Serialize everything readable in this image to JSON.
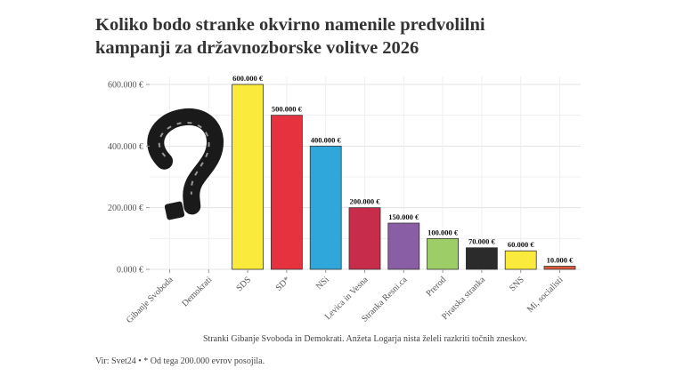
{
  "title_line1": "Koliko bodo stranke okvirno namenile predvolilni",
  "title_line2": "kampanji za državnozborske volitve 2026",
  "note": "Stranki Gibanje Svoboda in Demokrati. Anžeta Logarja nista želeli razkriti točnih zneskov.",
  "source": "Vir: Svet24 • * Od tega 200.000 evrov posojila.",
  "decoration": {
    "icon": "question-mark-icon"
  },
  "chart_data": {
    "type": "bar",
    "categories": [
      "Gibanje Svoboda",
      "Demokrati",
      "SDS",
      "SD*",
      "NSi",
      "Levica in Vesna",
      "Stranka Resni.ca",
      "Prerod",
      "Piratska stranka",
      "SNS",
      "Mi, socialisti"
    ],
    "values": [
      null,
      null,
      600000,
      500000,
      400000,
      200000,
      150000,
      100000,
      70000,
      60000,
      10000
    ],
    "data_labels": [
      "",
      "",
      "600.000 €",
      "500.000 €",
      "400.000 €",
      "200.000 €",
      "150.000 €",
      "100.000 €",
      "70.000 €",
      "60.000 €",
      "10.000 €"
    ],
    "colors": [
      "#cccccc",
      "#cccccc",
      "#f9ea3b",
      "#e6323f",
      "#30a7db",
      "#c72c4b",
      "#8a5ea4",
      "#9dcd66",
      "#2b2b2b",
      "#f9ea3b",
      "#e0583a"
    ],
    "yticks": [
      0,
      200000,
      400000,
      600000
    ],
    "ytick_labels": [
      "0.000 €",
      "200.000 €",
      "400.000 €",
      "600.000 €"
    ],
    "ylim": [
      0,
      630000
    ],
    "grid": true,
    "xlabel": "",
    "ylabel": ""
  }
}
